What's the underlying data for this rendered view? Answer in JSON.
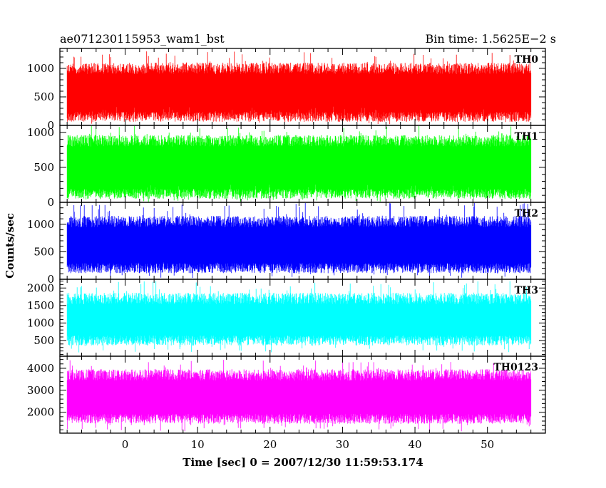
{
  "header": {
    "left_title": "ae071230115953_wam1_bst",
    "right_title": "Bin time: 1.5625E−2 s"
  },
  "axes": {
    "xlabel": "Time [sec] 0 = 2007/12/30 11:59:53.174",
    "ylabel": "Counts/sec"
  },
  "chart_data": [
    {
      "type": "line",
      "panel": "TH0",
      "color": "#ff0000",
      "xlim": [
        -9,
        58
      ],
      "ylim": [
        0,
        1350
      ],
      "yticks": [
        0,
        500,
        1000
      ],
      "data_x_range": [
        -8,
        56
      ],
      "typical_low": 150,
      "typical_high": 1000,
      "occasional_low": 20,
      "occasional_high": 1300
    },
    {
      "type": "line",
      "panel": "TH1",
      "color": "#00ff00",
      "xlim": [
        -9,
        58
      ],
      "ylim": [
        0,
        1100
      ],
      "yticks": [
        0,
        500,
        1000
      ],
      "data_x_range": [
        -8,
        56
      ],
      "typical_low": 120,
      "typical_high": 880,
      "occasional_low": 0,
      "occasional_high": 1100
    },
    {
      "type": "line",
      "panel": "TH2",
      "color": "#0000ff",
      "xlim": [
        -9,
        58
      ],
      "ylim": [
        0,
        1400
      ],
      "yticks": [
        0,
        500,
        1000
      ],
      "data_x_range": [
        -8,
        56
      ],
      "typical_low": 200,
      "typical_high": 1050,
      "occasional_low": 10,
      "occasional_high": 1400
    },
    {
      "type": "line",
      "panel": "TH3",
      "color": "#00ffff",
      "xlim": [
        -9,
        58
      ],
      "ylim": [
        50,
        2250
      ],
      "yticks": [
        500,
        1000,
        1500,
        2000
      ],
      "data_x_range": [
        -8,
        56
      ],
      "typical_low": 500,
      "typical_high": 1700,
      "occasional_low": 150,
      "occasional_high": 2200
    },
    {
      "type": "line",
      "panel": "TH0123",
      "color": "#ff00ff",
      "xlim": [
        -9,
        58
      ],
      "ylim": [
        1050,
        4550
      ],
      "yticks": [
        2000,
        3000,
        4000
      ],
      "data_x_range": [
        -8,
        56
      ],
      "typical_low": 1700,
      "typical_high": 3700,
      "occasional_low": 1100,
      "occasional_high": 4400
    }
  ],
  "xticks": [
    0,
    10,
    20,
    30,
    40,
    50
  ]
}
